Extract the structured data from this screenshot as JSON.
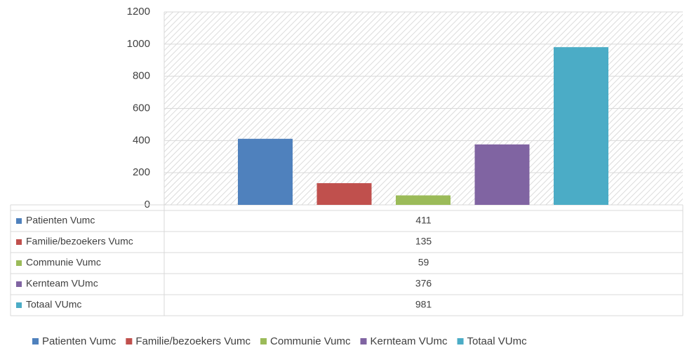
{
  "chart_data": {
    "type": "bar",
    "series": [
      {
        "name": "Patienten Vumc",
        "color": "#4f81bd",
        "values": [
          411
        ]
      },
      {
        "name": "Familie/bezoekers Vumc",
        "color": "#c0504d",
        "values": [
          135
        ]
      },
      {
        "name": "Communie Vumc",
        "color": "#9bbb59",
        "values": [
          59
        ]
      },
      {
        "name": "Kernteam VUmc",
        "color": "#8064a2",
        "values": [
          376
        ]
      },
      {
        "name": "Totaal VUmc",
        "color": "#4bacc6",
        "values": [
          981
        ]
      }
    ],
    "ylim": [
      0,
      1200
    ],
    "yticks": [
      0,
      200,
      400,
      600,
      800,
      1000,
      1200
    ],
    "grid": true,
    "data_table": true,
    "legend": "bottom"
  }
}
